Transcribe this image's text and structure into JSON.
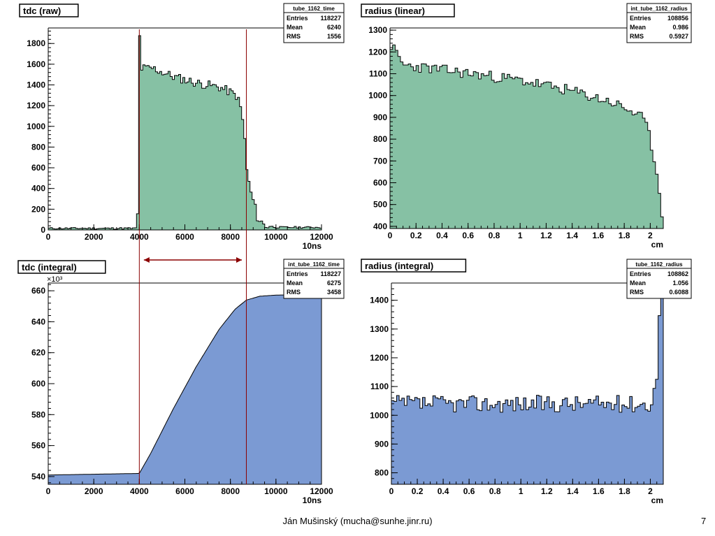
{
  "footer": {
    "author": "Ján Mušinský (mucha@sunhe.jinr.ru)",
    "page": "7"
  },
  "colors": {
    "green_fill": "#86c1a4",
    "blue_fill": "#7b9ad3",
    "marker": "#8b0000"
  },
  "chart_data": [
    {
      "type": "bar",
      "title": "tdc (raw)",
      "xlabel": "10ns",
      "ylabel": "",
      "xlim": [
        0,
        12000
      ],
      "ylim": [
        0,
        1950
      ],
      "xticks": [
        "0",
        "2000",
        "4000",
        "6000",
        "8000",
        "10000",
        "12000"
      ],
      "yticks": [
        "0",
        "200",
        "400",
        "600",
        "800",
        "1000",
        "1200",
        "1400",
        "1600",
        "1800"
      ],
      "stats": {
        "name": "tube_1162_time",
        "rows": [
          {
            "label": "Entries",
            "value": "118227"
          },
          {
            "label": "Mean",
            "value": "6240"
          },
          {
            "label": "RMS",
            "value": "1556"
          }
        ]
      },
      "markers": [
        4000,
        8700
      ],
      "profile": [
        [
          0,
          15
        ],
        [
          3900,
          15
        ],
        [
          3950,
          300
        ],
        [
          4010,
          1880
        ],
        [
          4100,
          1560
        ],
        [
          4600,
          1560
        ],
        [
          5500,
          1480
        ],
        [
          6500,
          1420
        ],
        [
          7500,
          1380
        ],
        [
          8000,
          1330
        ],
        [
          8300,
          1290
        ],
        [
          8500,
          1140
        ],
        [
          8640,
          850
        ],
        [
          8700,
          620
        ],
        [
          8850,
          400
        ],
        [
          9050,
          250
        ],
        [
          9200,
          110
        ],
        [
          9500,
          45
        ],
        [
          10000,
          25
        ],
        [
          12000,
          25
        ]
      ],
      "grid": false,
      "legend": "top-right"
    },
    {
      "type": "bar",
      "title": "radius (linear)",
      "xlabel": "cm",
      "ylabel": "",
      "xlim": [
        0,
        2.1
      ],
      "ylim": [
        390,
        1310
      ],
      "xticks": [
        "0",
        "0.2",
        "0.4",
        "0.6",
        "0.8",
        "1",
        "1.2",
        "1.4",
        "1.6",
        "1.8",
        "2"
      ],
      "yticks": [
        "400",
        "500",
        "600",
        "700",
        "800",
        "900",
        "1000",
        "1100",
        "1200",
        "1300"
      ],
      "stats": {
        "name": "int_tube_1162_radius",
        "rows": [
          {
            "label": "Entries",
            "value": "108856"
          },
          {
            "label": "Mean",
            "value": "0.986"
          },
          {
            "label": "RMS",
            "value": "0.5927"
          }
        ]
      },
      "profile": [
        [
          0,
          1240
        ],
        [
          0.1,
          1140
        ],
        [
          0.5,
          1110
        ],
        [
          1.0,
          1070
        ],
        [
          1.4,
          1020
        ],
        [
          1.7,
          970
        ],
        [
          1.85,
          930
        ],
        [
          1.95,
          890
        ],
        [
          2.0,
          800
        ],
        [
          2.04,
          680
        ],
        [
          2.08,
          520
        ],
        [
          2.1,
          410
        ]
      ],
      "grid": false,
      "legend": "top-right"
    },
    {
      "type": "area",
      "title": "tdc (integral)",
      "xlabel": "10ns",
      "ylabel": "",
      "y_multiplier": "×10³",
      "xlim": [
        0,
        12000
      ],
      "ylim": [
        535,
        665
      ],
      "xticks": [
        "0",
        "2000",
        "4000",
        "6000",
        "8000",
        "10000",
        "12000"
      ],
      "yticks": [
        "540",
        "560",
        "580",
        "600",
        "620",
        "640",
        "660"
      ],
      "stats": {
        "name": "int_tube_1162_time",
        "rows": [
          {
            "label": "Entries",
            "value": "118227"
          },
          {
            "label": "Mean",
            "value": "6275"
          },
          {
            "label": "RMS",
            "value": "3458"
          }
        ]
      },
      "markers": [
        4000,
        8700
      ],
      "arrow": [
        4200,
        8500
      ],
      "profile": [
        [
          0,
          541
        ],
        [
          4000,
          542
        ],
        [
          4500,
          555
        ],
        [
          5500,
          584
        ],
        [
          6500,
          611
        ],
        [
          7500,
          635
        ],
        [
          8200,
          648
        ],
        [
          8700,
          654
        ],
        [
          9300,
          656.5
        ],
        [
          10000,
          657.2
        ],
        [
          12000,
          657.8
        ]
      ],
      "grid": false,
      "legend": "top-right"
    },
    {
      "type": "bar",
      "title": "radius (integral)",
      "xlabel": "cm",
      "ylabel": "",
      "xlim": [
        0,
        2.1
      ],
      "ylim": [
        760,
        1460
      ],
      "xticks": [
        "0",
        "0.2",
        "0.4",
        "0.6",
        "0.8",
        "1",
        "1.2",
        "1.4",
        "1.6",
        "1.8",
        "2"
      ],
      "yticks": [
        "800",
        "900",
        "1000",
        "1100",
        "1200",
        "1300",
        "1400"
      ],
      "stats": {
        "name": "tube_1162_radius",
        "rows": [
          {
            "label": "Entries",
            "value": "108862"
          },
          {
            "label": "Mean",
            "value": "1.056"
          },
          {
            "label": "RMS",
            "value": "0.6088"
          }
        ]
      },
      "profile": [
        [
          0,
          1040
        ],
        [
          2.0,
          1040
        ]
      ],
      "edge": [
        [
          2.02,
          1050
        ],
        [
          2.05,
          1140
        ],
        [
          2.08,
          1460
        ]
      ],
      "grid": false,
      "legend": "top-right"
    }
  ]
}
